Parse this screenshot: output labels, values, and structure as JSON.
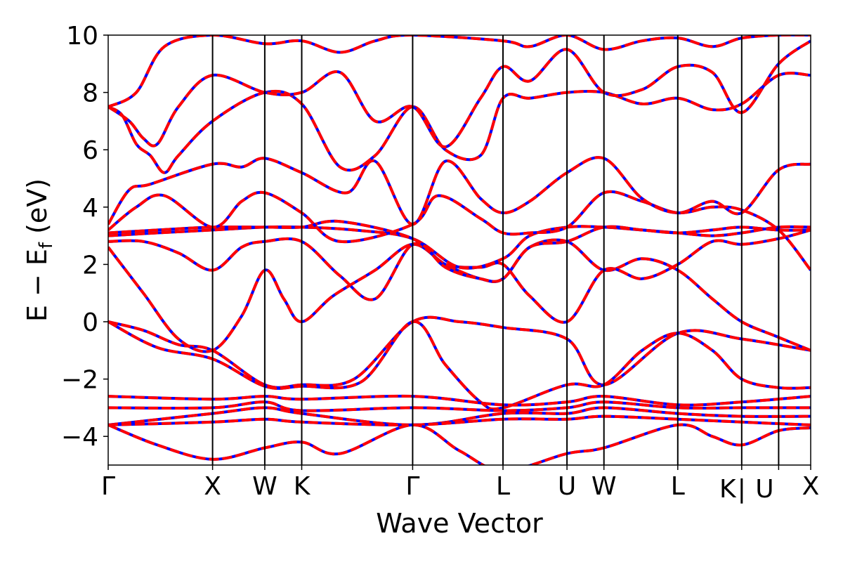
{
  "chart_data": {
    "type": "line",
    "xlabel": "Wave Vector",
    "ylabel": "E − E",
    "ylabel_sub": "f",
    "ylabel_unit": " (eV)",
    "ylim": [
      -5,
      10
    ],
    "xlim": [
      0,
      1
    ],
    "yticks": [
      -4,
      -2,
      0,
      2,
      4,
      6,
      8,
      10
    ],
    "ytick_labels": [
      "−4",
      "−2",
      "0",
      "2",
      "4",
      "6",
      "8",
      "10"
    ],
    "kpoints": [
      {
        "label": "Γ",
        "x": 0.0
      },
      {
        "label": "X",
        "x": 0.1486
      },
      {
        "label": "W",
        "x": 0.2229
      },
      {
        "label": "K",
        "x": 0.2755
      },
      {
        "label": "Γ",
        "x": 0.4334
      },
      {
        "label": "L",
        "x": 0.562
      },
      {
        "label": "U",
        "x": 0.6531
      },
      {
        "label": "W",
        "x": 0.7057
      },
      {
        "label": "L",
        "x": 0.8108
      },
      {
        "label": "K",
        "x": 0.9018
      },
      {
        "label": "|",
        "x": 0.9018
      },
      {
        "label": "U",
        "x": 0.9544
      },
      {
        "label": "X",
        "x": 1.0
      }
    ],
    "series": [
      {
        "color": "#0000ff",
        "style": "solid"
      },
      {
        "color": "#ff0000",
        "style": "dashed"
      }
    ],
    "bands": [
      [
        [
          0,
          0
        ],
        [
          0.05,
          -0.3
        ],
        [
          0.1,
          -0.8
        ],
        [
          0.1486,
          -1.0
        ],
        [
          0.2229,
          -2.2
        ],
        [
          0.2755,
          -2.2
        ],
        [
          0.35,
          -2.0
        ],
        [
          0.4334,
          0.0
        ],
        [
          0.5,
          0.0
        ],
        [
          0.562,
          -0.2
        ],
        [
          0.6531,
          -0.6
        ],
        [
          0.7057,
          -2.2
        ],
        [
          0.8108,
          -0.4
        ],
        [
          0.9018,
          -0.6
        ],
        [
          1.0,
          -1.0
        ]
      ],
      [
        [
          0,
          0
        ],
        [
          0.07,
          -0.9
        ],
        [
          0.1486,
          -1.3
        ],
        [
          0.2229,
          -2.25
        ],
        [
          0.2755,
          -2.25
        ],
        [
          0.36,
          -2.1
        ],
        [
          0.4334,
          0.0
        ],
        [
          0.48,
          -1.5
        ],
        [
          0.53,
          -2.8
        ],
        [
          0.562,
          -3.0
        ],
        [
          0.6531,
          -2.2
        ],
        [
          0.7057,
          -2.2
        ],
        [
          0.76,
          -1.0
        ],
        [
          0.8108,
          -0.4
        ],
        [
          0.86,
          -1.0
        ],
        [
          0.9018,
          -2.0
        ],
        [
          0.9544,
          -2.3
        ],
        [
          1.0,
          -2.3
        ]
      ],
      [
        [
          0,
          2.6
        ],
        [
          0.05,
          1.0
        ],
        [
          0.1,
          -0.6
        ],
        [
          0.1486,
          -1.0
        ],
        [
          0.19,
          0.2
        ],
        [
          0.2229,
          1.8
        ],
        [
          0.25,
          0.8
        ],
        [
          0.2755,
          0.0
        ],
        [
          0.32,
          0.9
        ],
        [
          0.38,
          1.8
        ],
        [
          0.4334,
          2.7
        ],
        [
          0.48,
          2.0
        ],
        [
          0.53,
          1.5
        ],
        [
          0.562,
          1.5
        ],
        [
          0.6,
          2.6
        ],
        [
          0.6531,
          2.8
        ],
        [
          0.7057,
          1.8
        ],
        [
          0.76,
          2.2
        ],
        [
          0.8108,
          1.8
        ],
        [
          0.86,
          0.8
        ],
        [
          0.9018,
          0.0
        ],
        [
          0.95,
          -0.5
        ],
        [
          1.0,
          -1.0
        ]
      ],
      [
        [
          0,
          2.8
        ],
        [
          0.05,
          2.8
        ],
        [
          0.1,
          2.4
        ],
        [
          0.1486,
          1.8
        ],
        [
          0.19,
          2.6
        ],
        [
          0.2229,
          2.8
        ],
        [
          0.2755,
          2.8
        ],
        [
          0.33,
          1.6
        ],
        [
          0.38,
          0.8
        ],
        [
          0.4334,
          2.7
        ],
        [
          0.48,
          2.0
        ],
        [
          0.53,
          1.9
        ],
        [
          0.562,
          2.0
        ],
        [
          0.6,
          0.9
        ],
        [
          0.6531,
          0.0
        ],
        [
          0.7057,
          1.8
        ],
        [
          0.76,
          1.5
        ],
        [
          0.8108,
          2.0
        ],
        [
          0.86,
          2.8
        ],
        [
          0.9018,
          2.7
        ],
        [
          0.9544,
          2.9
        ],
        [
          1.0,
          3.2
        ]
      ],
      [
        [
          0,
          3.0
        ],
        [
          0.07,
          3.1
        ],
        [
          0.1486,
          3.2
        ],
        [
          0.2229,
          3.3
        ],
        [
          0.2755,
          3.3
        ],
        [
          0.35,
          3.2
        ],
        [
          0.4334,
          2.9
        ],
        [
          0.5,
          1.9
        ],
        [
          0.562,
          2.2
        ],
        [
          0.6,
          3.0
        ],
        [
          0.6531,
          3.3
        ],
        [
          0.7057,
          3.3
        ],
        [
          0.76,
          3.2
        ],
        [
          0.8108,
          3.1
        ],
        [
          0.86,
          3.0
        ],
        [
          0.9018,
          3.1
        ],
        [
          0.9544,
          3.3
        ],
        [
          1.0,
          3.3
        ]
      ],
      [
        [
          0,
          3.1
        ],
        [
          0.07,
          3.2
        ],
        [
          0.1486,
          3.3
        ],
        [
          0.2229,
          3.3
        ],
        [
          0.2755,
          3.3
        ],
        [
          0.33,
          3.5
        ],
        [
          0.4334,
          2.9
        ],
        [
          0.48,
          1.9
        ],
        [
          0.53,
          1.5
        ],
        [
          0.562,
          1.5
        ],
        [
          0.6,
          2.6
        ],
        [
          0.6531,
          2.8
        ],
        [
          0.7057,
          3.3
        ],
        [
          0.76,
          3.2
        ],
        [
          0.8108,
          3.1
        ],
        [
          0.86,
          3.2
        ],
        [
          0.9018,
          3.3
        ],
        [
          0.9544,
          3.2
        ],
        [
          1.0,
          3.2
        ]
      ],
      [
        [
          0,
          3.2
        ],
        [
          0.04,
          4.0
        ],
        [
          0.08,
          4.4
        ],
        [
          0.1486,
          3.3
        ],
        [
          0.19,
          4.2
        ],
        [
          0.2229,
          4.5
        ],
        [
          0.2755,
          3.8
        ],
        [
          0.33,
          2.8
        ],
        [
          0.4334,
          3.4
        ],
        [
          0.47,
          4.4
        ],
        [
          0.53,
          3.6
        ],
        [
          0.562,
          3.1
        ],
        [
          0.6,
          3.1
        ],
        [
          0.6531,
          3.3
        ],
        [
          0.7057,
          4.5
        ],
        [
          0.76,
          4.2
        ],
        [
          0.8108,
          3.8
        ],
        [
          0.86,
          4.0
        ],
        [
          0.9018,
          3.9
        ],
        [
          0.9544,
          3.2
        ],
        [
          1.0,
          1.8
        ]
      ],
      [
        [
          0,
          3.4
        ],
        [
          0.03,
          4.6
        ],
        [
          0.06,
          4.8
        ],
        [
          0.1486,
          5.5
        ],
        [
          0.19,
          5.4
        ],
        [
          0.2229,
          5.7
        ],
        [
          0.2755,
          5.2
        ],
        [
          0.34,
          4.5
        ],
        [
          0.38,
          5.6
        ],
        [
          0.4334,
          3.4
        ],
        [
          0.48,
          5.6
        ],
        [
          0.53,
          4.3
        ],
        [
          0.562,
          3.8
        ],
        [
          0.6,
          4.2
        ],
        [
          0.6531,
          5.2
        ],
        [
          0.7057,
          5.7
        ],
        [
          0.76,
          4.3
        ],
        [
          0.8108,
          3.8
        ],
        [
          0.86,
          4.2
        ],
        [
          0.9018,
          3.8
        ],
        [
          0.9544,
          5.3
        ],
        [
          1.0,
          5.5
        ]
      ],
      [
        [
          0,
          7.5
        ],
        [
          0.02,
          7.2
        ],
        [
          0.04,
          6.2
        ],
        [
          0.06,
          5.8
        ],
        [
          0.08,
          5.2
        ],
        [
          0.1,
          5.8
        ],
        [
          0.1486,
          7.0
        ],
        [
          0.2229,
          8.0
        ],
        [
          0.2755,
          7.6
        ],
        [
          0.33,
          5.4
        ],
        [
          0.38,
          5.8
        ],
        [
          0.4334,
          7.5
        ],
        [
          0.48,
          6.0
        ],
        [
          0.53,
          5.8
        ],
        [
          0.562,
          7.8
        ],
        [
          0.6,
          7.8
        ],
        [
          0.6531,
          8.0
        ],
        [
          0.7057,
          8.0
        ],
        [
          0.76,
          7.6
        ],
        [
          0.8108,
          7.8
        ],
        [
          0.86,
          7.4
        ],
        [
          0.9018,
          7.6
        ],
        [
          0.9544,
          8.6
        ],
        [
          1.0,
          8.6
        ]
      ],
      [
        [
          0,
          7.5
        ],
        [
          0.03,
          7.0
        ],
        [
          0.05,
          6.4
        ],
        [
          0.07,
          6.2
        ],
        [
          0.1,
          7.5
        ],
        [
          0.1486,
          8.6
        ],
        [
          0.2229,
          8.0
        ],
        [
          0.2755,
          8.0
        ],
        [
          0.33,
          8.7
        ],
        [
          0.38,
          7.0
        ],
        [
          0.4334,
          7.5
        ],
        [
          0.48,
          6.1
        ],
        [
          0.53,
          7.8
        ],
        [
          0.562,
          8.9
        ],
        [
          0.6,
          8.4
        ],
        [
          0.6531,
          9.5
        ],
        [
          0.7057,
          8.0
        ],
        [
          0.76,
          8.1
        ],
        [
          0.8108,
          8.9
        ],
        [
          0.86,
          8.7
        ],
        [
          0.9018,
          7.3
        ],
        [
          0.9544,
          9.0
        ],
        [
          1.0,
          9.8
        ]
      ],
      [
        [
          0,
          7.5
        ],
        [
          0.04,
          8.0
        ],
        [
          0.08,
          9.6
        ],
        [
          0.1486,
          10.0
        ],
        [
          0.2229,
          9.7
        ],
        [
          0.2755,
          9.8
        ],
        [
          0.33,
          9.4
        ],
        [
          0.38,
          9.8
        ],
        [
          0.43,
          10.0
        ],
        [
          0.562,
          9.8
        ],
        [
          0.6,
          9.6
        ],
        [
          0.6531,
          10.0
        ],
        [
          0.7057,
          9.5
        ],
        [
          0.76,
          9.8
        ],
        [
          0.8108,
          9.9
        ],
        [
          0.86,
          9.6
        ],
        [
          0.9018,
          9.9
        ],
        [
          0.9544,
          10.0
        ],
        [
          1.0,
          10.0
        ]
      ],
      [
        [
          0,
          -2.6
        ],
        [
          0.1486,
          -2.7
        ],
        [
          0.2229,
          -2.6
        ],
        [
          0.2755,
          -2.7
        ],
        [
          0.4334,
          -2.6
        ],
        [
          0.562,
          -2.9
        ],
        [
          0.6531,
          -2.8
        ],
        [
          0.7057,
          -2.6
        ],
        [
          0.8108,
          -2.9
        ],
        [
          0.9018,
          -2.8
        ],
        [
          1.0,
          -2.6
        ]
      ],
      [
        [
          0,
          -3.0
        ],
        [
          0.1486,
          -3.0
        ],
        [
          0.2229,
          -2.8
        ],
        [
          0.2755,
          -3.1
        ],
        [
          0.4334,
          -3.0
        ],
        [
          0.562,
          -3.1
        ],
        [
          0.6531,
          -3.0
        ],
        [
          0.7057,
          -2.8
        ],
        [
          0.8108,
          -3.0
        ],
        [
          0.9018,
          -3.0
        ],
        [
          1.0,
          -3.0
        ]
      ],
      [
        [
          0,
          -3.6
        ],
        [
          0.1486,
          -3.2
        ],
        [
          0.2229,
          -3.0
        ],
        [
          0.2755,
          -3.2
        ],
        [
          0.4334,
          -3.6
        ],
        [
          0.562,
          -3.2
        ],
        [
          0.6531,
          -3.2
        ],
        [
          0.7057,
          -3.0
        ],
        [
          0.8108,
          -3.2
        ],
        [
          0.9018,
          -3.3
        ],
        [
          1.0,
          -3.3
        ]
      ],
      [
        [
          0,
          -3.6
        ],
        [
          0.1486,
          -3.5
        ],
        [
          0.2229,
          -3.4
        ],
        [
          0.2755,
          -3.5
        ],
        [
          0.4334,
          -3.6
        ],
        [
          0.562,
          -3.4
        ],
        [
          0.6531,
          -3.4
        ],
        [
          0.7057,
          -3.3
        ],
        [
          0.8108,
          -3.4
        ],
        [
          0.9018,
          -3.5
        ],
        [
          1.0,
          -3.6
        ]
      ],
      [
        [
          0,
          -3.6
        ],
        [
          0.07,
          -4.3
        ],
        [
          0.1486,
          -4.8
        ],
        [
          0.2229,
          -4.4
        ],
        [
          0.2755,
          -4.2
        ],
        [
          0.33,
          -4.6
        ],
        [
          0.4334,
          -3.6
        ],
        [
          0.5,
          -4.5
        ],
        [
          0.562,
          -5.2
        ],
        [
          0.6531,
          -4.6
        ],
        [
          0.7057,
          -4.4
        ],
        [
          0.8108,
          -3.6
        ],
        [
          0.86,
          -4.0
        ],
        [
          0.9018,
          -4.3
        ],
        [
          0.9544,
          -3.8
        ],
        [
          1.0,
          -3.7
        ]
      ]
    ]
  }
}
